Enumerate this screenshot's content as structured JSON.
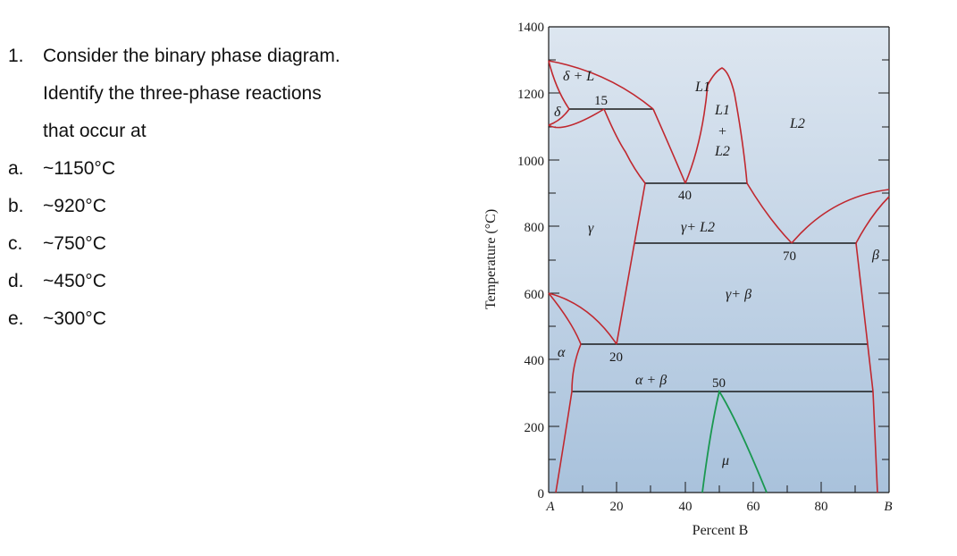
{
  "question": {
    "number": "1.",
    "lines": [
      "Consider the binary phase diagram.",
      "Identify the three-phase reactions",
      "that occur at"
    ],
    "options": [
      {
        "letter": "a.",
        "text": "~1150°C"
      },
      {
        "letter": "b.",
        "text": "~920°C"
      },
      {
        "letter": "c.",
        "text": "~750°C"
      },
      {
        "letter": "d.",
        "text": "~450°C"
      },
      {
        "letter": "e.",
        "text": "~300°C"
      }
    ]
  },
  "diagram": {
    "y_axis_label": "Temperature (°C)",
    "x_axis_label": "Percent B",
    "y_ticks": [
      "1400",
      "1200",
      "1000",
      "800",
      "600",
      "400",
      "200",
      "0"
    ],
    "x_ticks": [
      "A",
      "20",
      "40",
      "60",
      "80",
      "B"
    ],
    "region_labels": {
      "delta_plus_L": "δ + L",
      "L1_top": "L1",
      "L1_mid": "L1",
      "plus": "+",
      "L2_mid": "L2",
      "L2_right": "L2",
      "delta": "δ",
      "gamma": "γ",
      "gamma_plus_L2": "γ+ L2",
      "gamma_plus_beta": "γ+ β",
      "alpha": "α",
      "alpha_plus_beta": "α + β",
      "beta": "β",
      "mu": "μ"
    },
    "point_labels": {
      "p15": "15",
      "p40": "40",
      "p70": "70",
      "p20": "20",
      "p50": "50"
    },
    "colors": {
      "background_top": "#dde6f0",
      "background_bottom": "#a9c2dc",
      "phase_line": "#c0282f",
      "isotherm": "#1a1a1a",
      "mu_line": "#1a9850"
    }
  }
}
